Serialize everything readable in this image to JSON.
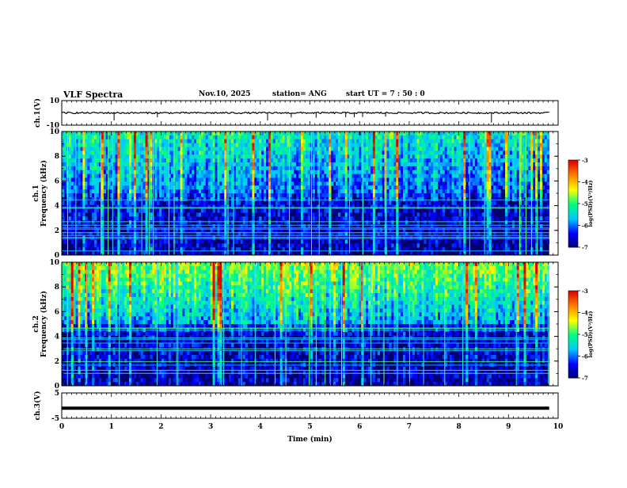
{
  "header": {
    "title": "VLF Spectra",
    "date": "Nov.10, 2025",
    "station": "station= ANG",
    "start": "start  UT =  7 : 50 : 0"
  },
  "chart_data": [
    {
      "type": "line",
      "panel": "ch1-waveform",
      "ylabel": "ch.1(V)",
      "ylim": [
        -10,
        10
      ],
      "y_ticks": [
        "10",
        "-10"
      ],
      "baseline": 0,
      "color": "#000000"
    },
    {
      "type": "heatmap",
      "panel": "ch1-spectrogram",
      "ylabel": "ch.1\nFrequency (kHz)",
      "ylim": [
        0,
        10
      ],
      "y_ticks": [
        "0",
        "2",
        "4",
        "6",
        "8",
        "10"
      ],
      "colorbar": {
        "label": "log(PSD)(V²/Hz)",
        "range": [
          -7,
          -3
        ],
        "ticks": [
          "-3",
          "-4",
          "-5",
          "-6",
          "-7"
        ]
      }
    },
    {
      "type": "heatmap",
      "panel": "ch2-spectrogram",
      "ylabel": "ch.2\nFrequency (kHz)",
      "ylim": [
        0,
        10
      ],
      "y_ticks": [
        "0",
        "2",
        "4",
        "6",
        "8",
        "10"
      ],
      "colorbar": {
        "label": "log(PSD)(V²/Hz)",
        "range": [
          -7,
          -3
        ],
        "ticks": [
          "-3",
          "-4",
          "-5",
          "-6",
          "-7"
        ]
      }
    },
    {
      "type": "line",
      "panel": "ch3-waveform",
      "ylabel": "ch.3(V)",
      "ylim": [
        -5,
        5
      ],
      "y_ticks": [
        "5",
        "-5"
      ],
      "values_constant": -1,
      "color": "#000000"
    }
  ],
  "x_axis": {
    "label": "Time (min)",
    "range": [
      0,
      10
    ],
    "data_end": 9.82,
    "ticks": [
      "0",
      "1",
      "2",
      "3",
      "4",
      "5",
      "6",
      "7",
      "8",
      "9",
      "10"
    ]
  },
  "colormap": [
    "#00006e",
    "#0000ff",
    "#00c8ff",
    "#00ff80",
    "#ffff00",
    "#ff8000",
    "#e00000"
  ]
}
